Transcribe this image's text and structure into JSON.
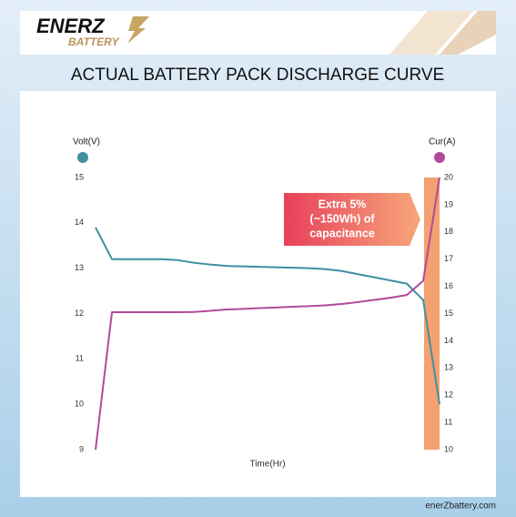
{
  "brand": {
    "name": "ENERZ",
    "tagline": "BATTERY"
  },
  "footer": "enerZbattery.com",
  "chart_data": {
    "type": "line",
    "title": "ACTUAL BATTERY PACK DISCHARGE CURVE",
    "xlabel": "Time(Hr)",
    "ylabel": "Volt(V)",
    "y2label": "Cur(A)",
    "annotation": [
      "Extra 5%",
      "(~150Wh) of",
      "capacitance"
    ],
    "categories": [
      null,
      null,
      null,
      null,
      null,
      null,
      null,
      null,
      null,
      null,
      null,
      null,
      null,
      null,
      null,
      null,
      null,
      null,
      null,
      null,
      null,
      null
    ],
    "series": [
      {
        "name": "Volt(V)",
        "color": "#3f8fa0",
        "values": [
          13.9,
          13.2,
          13.2,
          13.2,
          13.2,
          13.18,
          13.12,
          13.08,
          13.05,
          13.04,
          13.03,
          13.02,
          13.01,
          13.0,
          12.98,
          12.94,
          12.87,
          12.8,
          12.73,
          12.66,
          12.3,
          10.0
        ]
      },
      {
        "name": "Cur(A)",
        "color": "#b04a9a",
        "axis": "y2",
        "values": [
          10,
          15.05,
          15.05,
          15.05,
          15.05,
          15.05,
          15.06,
          15.1,
          15.15,
          15.17,
          15.2,
          15.22,
          15.25,
          15.27,
          15.3,
          15.35,
          15.42,
          15.5,
          15.58,
          15.68,
          16.2,
          20
        ]
      }
    ],
    "ylim": [
      9,
      15
    ],
    "yticks": [
      9,
      10,
      11,
      12,
      13,
      14,
      15
    ],
    "y2lim": [
      10,
      20
    ],
    "y2ticks": [
      10,
      11,
      12,
      13,
      14,
      15,
      16,
      17,
      18,
      19,
      20
    ],
    "grid": false
  }
}
